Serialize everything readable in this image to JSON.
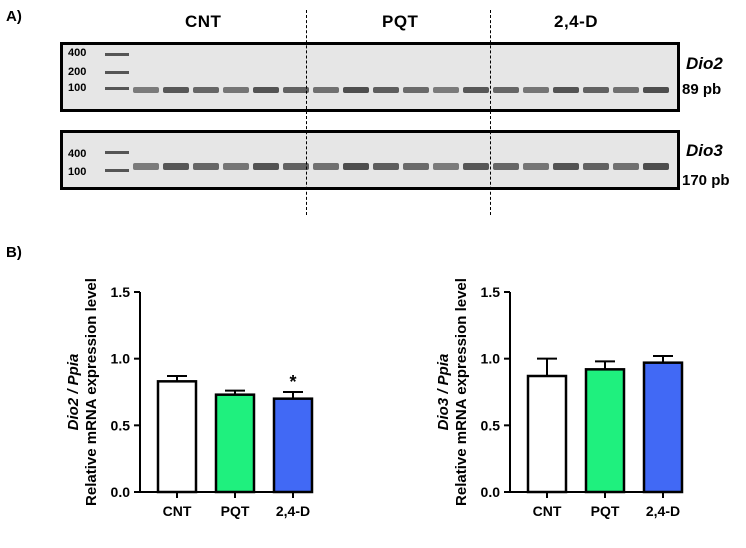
{
  "panel_a_label": "A)",
  "panel_b_label": "B)",
  "groups": [
    "CNT",
    "PQT",
    "2,4-D"
  ],
  "gels": [
    {
      "gene": "Dio2",
      "product": "89 pb",
      "markers": [
        "400",
        "200",
        "100"
      ]
    },
    {
      "gene": "Dio3",
      "product": "170 pb",
      "markers": [
        "400",
        "100"
      ]
    }
  ],
  "chart_data": [
    {
      "type": "bar",
      "title": "",
      "ylabel_gene": "Dio2 / Ppia",
      "ylabel": "Relative mRNA expression level",
      "categories": [
        "CNT",
        "PQT",
        "2,4-D"
      ],
      "values": [
        0.83,
        0.73,
        0.7
      ],
      "errors": [
        0.04,
        0.03,
        0.05
      ],
      "colors": [
        "#ffffff",
        "#1ff07e",
        "#4169f5"
      ],
      "annotations": [
        "",
        "",
        "*"
      ],
      "yticks": [
        "0.0",
        "0.5",
        "1.0",
        "1.5"
      ],
      "ylim": [
        0,
        1.5
      ]
    },
    {
      "type": "bar",
      "title": "",
      "ylabel_gene": "Dio3 / Ppia",
      "ylabel": "Relative mRNA expression level",
      "categories": [
        "CNT",
        "PQT",
        "2,4-D"
      ],
      "values": [
        0.87,
        0.92,
        0.97
      ],
      "errors": [
        0.13,
        0.06,
        0.05
      ],
      "colors": [
        "#ffffff",
        "#1ff07e",
        "#4169f5"
      ],
      "annotations": [
        "",
        "",
        ""
      ],
      "yticks": [
        "0.0",
        "0.5",
        "1.0",
        "1.5"
      ],
      "ylim": [
        0,
        1.5
      ]
    }
  ]
}
